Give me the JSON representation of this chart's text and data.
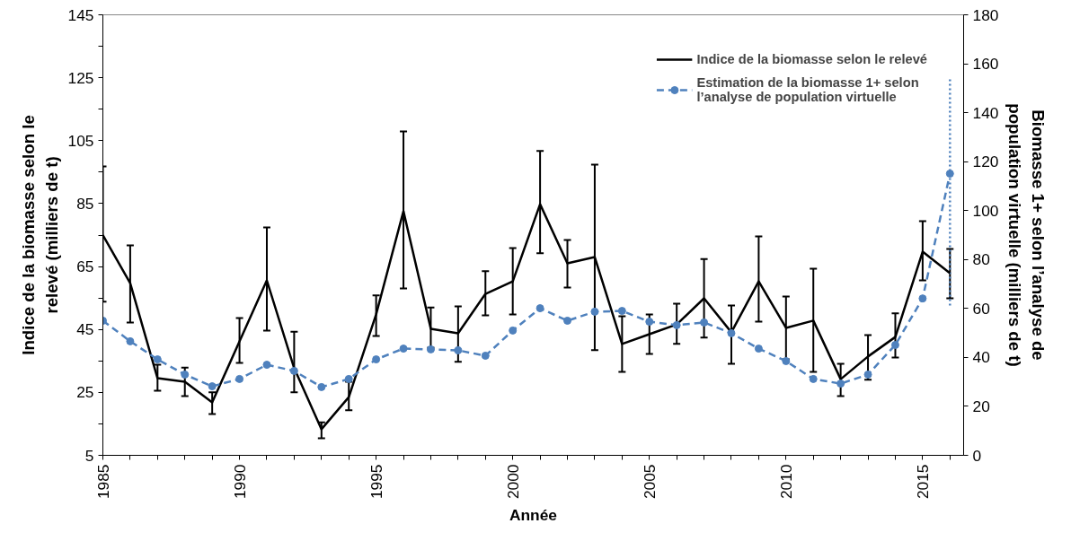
{
  "chart_data": {
    "type": "line",
    "xlabel": "Année",
    "ylabel": "Indice de la biomasse selon le relevé (milliers de t)",
    "y2label": "Biomasse 1+ selon l’analyse de population virtuelle (milliers de t)",
    "x": [
      1985,
      1986,
      1987,
      1988,
      1989,
      1990,
      1991,
      1992,
      1993,
      1994,
      1995,
      1996,
      1997,
      1998,
      1999,
      2000,
      2001,
      2002,
      2003,
      2004,
      2005,
      2006,
      2007,
      2008,
      2009,
      2010,
      2011,
      2012,
      2013,
      2014,
      2015,
      2016
    ],
    "series": [
      {
        "name": "Indice de la biomasse selon le relevé",
        "color": "#000000",
        "marker": "none",
        "line_style": "solid",
        "values": [
          75,
          59.7,
          29.5,
          28.4,
          21.8,
          41.2,
          60.6,
          32.7,
          13.3,
          23.5,
          49.8,
          82.6,
          45.2,
          43.8,
          56.3,
          60.3,
          84.8,
          66,
          68,
          40.4,
          43.5,
          46.6,
          54.9,
          44.1,
          60.3,
          45.5,
          47.8,
          29.2,
          36.4,
          42.6,
          69.7,
          62.9
        ],
        "errors": [
          [
            53.8,
            96.8
          ],
          [
            47.2,
            71.7
          ],
          [
            25.5,
            33.8
          ],
          [
            23.8,
            32.9
          ],
          [
            18.1,
            25
          ],
          [
            34.4,
            48.6
          ],
          [
            44.6,
            77.4
          ],
          [
            25,
            44.3
          ],
          [
            10.4,
            15.5
          ],
          [
            19.3,
            28.4
          ],
          [
            42.9,
            55.8
          ],
          [
            58,
            107.9
          ],
          [
            39.2,
            52
          ],
          [
            34.7,
            52.3
          ],
          [
            49.5,
            63.5
          ],
          [
            49.8,
            70.9
          ],
          [
            69.2,
            101.7
          ],
          [
            58.3,
            73.4
          ],
          [
            38.4,
            97.4
          ],
          [
            31.5,
            49.2
          ],
          [
            37.2,
            49.8
          ],
          [
            40.4,
            53.2
          ],
          [
            42.4,
            67.4
          ],
          [
            34.1,
            52.6
          ],
          [
            47.5,
            74.6
          ],
          [
            35.5,
            55.5
          ],
          [
            31.5,
            64.3
          ],
          [
            23.8,
            34.1
          ],
          [
            29,
            43.2
          ],
          [
            36.1,
            50.1
          ],
          [
            60.6,
            79.4
          ],
          [
            54.9,
            70.6
          ]
        ]
      },
      {
        "name": "Estimation de la biomasse 1+ selon l’analyse de population virtuelle",
        "color": "#4f81bd",
        "marker": "circle",
        "line_style": "dashed",
        "axis": "y2",
        "values": [
          55,
          46.6,
          39.2,
          33,
          28.2,
          31.2,
          37,
          34.5,
          27.9,
          31.2,
          39.2,
          43.6,
          43.3,
          42.9,
          40.7,
          51,
          60.1,
          55,
          58.7,
          59,
          54.6,
          53.2,
          54.3,
          49.9,
          43.6,
          38.5,
          31.2,
          29.3,
          33,
          45.1,
          64.1,
          115.1
        ],
        "errors": [
          null,
          null,
          null,
          null,
          null,
          null,
          null,
          null,
          null,
          null,
          null,
          null,
          null,
          null,
          null,
          null,
          null,
          null,
          null,
          null,
          null,
          null,
          null,
          null,
          null,
          null,
          null,
          null,
          null,
          null,
          null,
          [
            61.2,
            154.7
          ]
        ]
      }
    ],
    "xlim": [
      1985,
      2016.5
    ],
    "xticks": [
      1985,
      {
        "value": 1986,
        "label": null
      },
      {
        "value": 1987,
        "label": null
      },
      {
        "value": 1988,
        "label": null
      },
      {
        "value": 1989,
        "label": null
      },
      1990,
      {
        "value": 1991,
        "label": null
      },
      {
        "value": 1992,
        "label": null
      },
      {
        "value": 1993,
        "label": null
      },
      {
        "value": 1994,
        "label": null
      },
      1995,
      {
        "value": 1996,
        "label": null
      },
      {
        "value": 1997,
        "label": null
      },
      {
        "value": 1998,
        "label": null
      },
      {
        "value": 1999,
        "label": null
      },
      2000,
      {
        "value": 2001,
        "label": null
      },
      {
        "value": 2002,
        "label": null
      },
      {
        "value": 2003,
        "label": null
      },
      {
        "value": 2004,
        "label": null
      },
      2005,
      {
        "value": 2006,
        "label": null
      },
      {
        "value": 2007,
        "label": null
      },
      {
        "value": 2008,
        "label": null
      },
      {
        "value": 2009,
        "label": null
      },
      2010,
      {
        "value": 2011,
        "label": null
      },
      {
        "value": 2012,
        "label": null
      },
      {
        "value": 2013,
        "label": null
      },
      {
        "value": 2014,
        "label": null
      },
      2015,
      {
        "value": 2016,
        "label": null
      }
    ],
    "ylim": [
      5,
      145
    ],
    "yticks": [
      5,
      {
        "value": 15,
        "label": null
      },
      25,
      {
        "value": 35,
        "label": null
      },
      45,
      {
        "value": 55,
        "label": null
      },
      65,
      {
        "value": 75,
        "label": null
      },
      85,
      {
        "value": 95,
        "label": null
      },
      105,
      {
        "value": 115,
        "label": null
      },
      125,
      {
        "value": 135,
        "label": null
      },
      145
    ],
    "y2lim": [
      0,
      180
    ],
    "y2ticks": [
      0,
      20,
      40,
      60,
      80,
      100,
      120,
      140,
      160,
      180
    ],
    "grid": false,
    "legend": "top right"
  }
}
